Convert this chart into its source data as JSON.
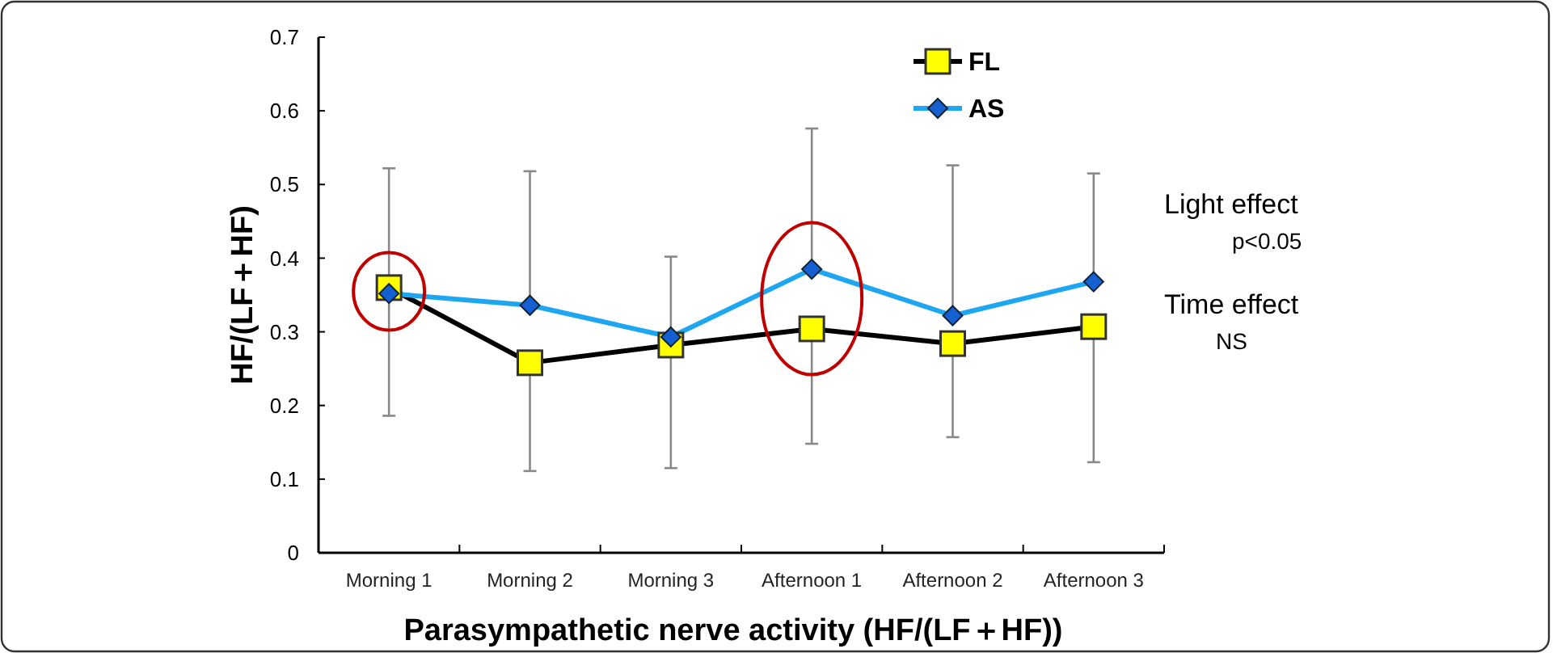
{
  "chart_data": {
    "type": "line",
    "xlabel": "Parasympathetic nerve activity (HF/(LF＋HF))",
    "ylabel": "HF/(LF＋HF)",
    "categories": [
      "Morning 1",
      "Morning 2",
      "Morning 3",
      "Afternoon 1",
      "Afternoon 2",
      "Afternoon 3"
    ],
    "series": [
      {
        "name": "FL",
        "color": "#000000",
        "marker": "square",
        "values": [
          0.36,
          0.258,
          0.282,
          0.304,
          0.284,
          0.307
        ],
        "errors": [
          [
            0.186,
            0.36
          ],
          [
            0.111,
            0.258
          ],
          [
            0.115,
            0.282
          ],
          [
            0.148,
            0.304
          ],
          [
            0.157,
            0.284
          ],
          [
            0.123,
            0.307
          ]
        ]
      },
      {
        "name": "AS",
        "color": "#1ea7f0",
        "marker": "diamond",
        "values": [
          0.352,
          0.336,
          0.293,
          0.385,
          0.322,
          0.368
        ],
        "errors": [
          [
            0.352,
            0.522
          ],
          [
            0.336,
            0.518
          ],
          [
            0.293,
            0.402
          ],
          [
            0.385,
            0.576
          ],
          [
            0.322,
            0.526
          ],
          [
            0.368,
            0.515
          ]
        ]
      }
    ],
    "ylim": [
      0,
      0.7
    ],
    "yticks": [
      0,
      0.1,
      0.2,
      0.3,
      0.4,
      0.5,
      0.6,
      0.7
    ],
    "legend": "top right",
    "grid": false,
    "annotations": [
      "Light effect",
      "p<0.05",
      "Time effect",
      "NS"
    ]
  }
}
